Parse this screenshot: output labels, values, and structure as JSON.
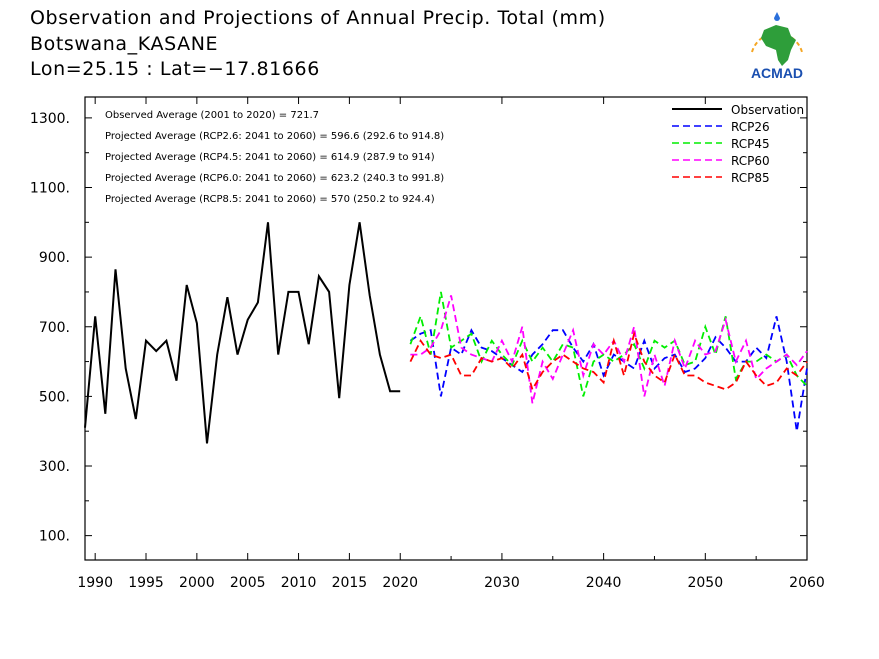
{
  "title": {
    "line1": "Observation and Projections of Annual Precip. Total (mm)",
    "line2": "Botswana_KASANE",
    "line3": "Lon=25.15 : Lat=−17.81666"
  },
  "logo": {
    "text": "ACMAD",
    "icon": "africa-map-logo"
  },
  "colors": {
    "observation": "#000000",
    "rcp26": "#0000ff",
    "rcp45": "#00ee00",
    "rcp60": "#ff00ff",
    "rcp85": "#ff0000"
  },
  "chart_data": {
    "type": "line",
    "xlim": [
      1989,
      2060
    ],
    "ylim": [
      30,
      1360
    ],
    "yticks": [
      100,
      300,
      500,
      700,
      900,
      1100,
      1300
    ],
    "ytick_labels": [
      "100.",
      "300.",
      "500.",
      "700.",
      "900.",
      "1100.",
      "1300."
    ],
    "xtick_labels": [
      {
        "x": 1990,
        "label": "1990"
      },
      {
        "x": 1995,
        "label": "1995"
      },
      {
        "x": 2000,
        "label": "2000"
      },
      {
        "x": 2005,
        "label": "2005"
      },
      {
        "x": 2010,
        "label": "2010"
      },
      {
        "x": 2015,
        "label": "2015"
      },
      {
        "x": 2020,
        "label": "2020"
      },
      {
        "x": 2030,
        "label": "2030"
      },
      {
        "x": 2040,
        "label": "2040"
      },
      {
        "x": 2050,
        "label": "2050"
      },
      {
        "x": 2060,
        "label": "2060"
      }
    ],
    "annotations": [
      "Observed Average (2001 to 2020) = 721.7",
      "Projected Average (RCP2.6: 2041 to 2060) = 596.6 (292.6 to 914.8)",
      "Projected Average (RCP4.5: 2041 to 2060) = 614.9 (287.9 to 914)",
      "Projected Average (RCP6.0: 2041 to 2060) = 623.2 (240.3 to 991.8)",
      "Projected Average (RCP8.5: 2041 to 2060) = 570 (250.2 to 924.4)"
    ],
    "series": [
      {
        "name": "Observation",
        "color": "#000000",
        "dash": false,
        "x": [
          1989,
          1990,
          1991,
          1992,
          1993,
          1994,
          1995,
          1996,
          1997,
          1998,
          1999,
          2000,
          2001,
          2002,
          2003,
          2004,
          2005,
          2006,
          2007,
          2008,
          2009,
          2010,
          2011,
          2012,
          2013,
          2014,
          2015,
          2016,
          2017,
          2018,
          2019,
          2020
        ],
        "y": [
          410,
          730,
          450,
          865,
          580,
          435,
          660,
          630,
          660,
          545,
          820,
          710,
          365,
          620,
          785,
          620,
          720,
          770,
          1000,
          620,
          800,
          800,
          650,
          845,
          800,
          495,
          820,
          1000,
          790,
          620,
          515,
          515
        ]
      },
      {
        "name": "RCP26",
        "color": "#0000ff",
        "dash": true,
        "x": [
          2021,
          2022,
          2023,
          2024,
          2025,
          2026,
          2027,
          2028,
          2029,
          2030,
          2031,
          2032,
          2033,
          2034,
          2035,
          2036,
          2037,
          2038,
          2039,
          2040,
          2041,
          2042,
          2043,
          2044,
          2045,
          2046,
          2047,
          2048,
          2049,
          2050,
          2051,
          2052,
          2053,
          2054,
          2055,
          2056,
          2057,
          2058,
          2059,
          2060
        ],
        "y": [
          660,
          680,
          690,
          500,
          640,
          620,
          690,
          640,
          630,
          610,
          590,
          570,
          620,
          650,
          690,
          690,
          640,
          600,
          650,
          560,
          620,
          600,
          580,
          660,
          580,
          610,
          620,
          570,
          580,
          610,
          670,
          640,
          600,
          600,
          640,
          610,
          730,
          600,
          400,
          580
        ]
      },
      {
        "name": "RCP45",
        "color": "#00ee00",
        "dash": true,
        "x": [
          2021,
          2022,
          2023,
          2024,
          2025,
          2026,
          2027,
          2028,
          2029,
          2030,
          2031,
          2032,
          2033,
          2034,
          2035,
          2036,
          2037,
          2038,
          2039,
          2040,
          2041,
          2042,
          2043,
          2044,
          2045,
          2046,
          2047,
          2048,
          2049,
          2050,
          2051,
          2052,
          2053,
          2054,
          2055,
          2056,
          2057,
          2058,
          2059,
          2060
        ],
        "y": [
          650,
          730,
          620,
          800,
          640,
          660,
          680,
          600,
          660,
          620,
          590,
          660,
          600,
          640,
          600,
          650,
          640,
          500,
          600,
          620,
          600,
          620,
          650,
          580,
          660,
          640,
          660,
          590,
          600,
          700,
          620,
          730,
          550,
          600,
          600,
          620,
          600,
          620,
          560,
          530
        ]
      },
      {
        "name": "RCP60",
        "color": "#ff00ff",
        "dash": true,
        "x": [
          2021,
          2022,
          2023,
          2024,
          2025,
          2026,
          2027,
          2028,
          2029,
          2030,
          2031,
          2032,
          2033,
          2034,
          2035,
          2036,
          2037,
          2038,
          2039,
          2040,
          2041,
          2042,
          2043,
          2044,
          2045,
          2046,
          2047,
          2048,
          2049,
          2050,
          2051,
          2052,
          2053,
          2054,
          2055,
          2056,
          2057,
          2058,
          2059,
          2060
        ],
        "y": [
          620,
          620,
          640,
          690,
          790,
          640,
          620,
          610,
          600,
          660,
          600,
          700,
          480,
          600,
          550,
          620,
          690,
          560,
          650,
          620,
          660,
          600,
          700,
          500,
          620,
          530,
          660,
          580,
          660,
          620,
          630,
          720,
          600,
          660,
          550,
          580,
          600,
          620,
          590,
          630
        ]
      },
      {
        "name": "RCP85",
        "color": "#ff0000",
        "dash": true,
        "x": [
          2021,
          2022,
          2023,
          2024,
          2025,
          2026,
          2027,
          2028,
          2029,
          2030,
          2031,
          2032,
          2033,
          2034,
          2035,
          2036,
          2037,
          2038,
          2039,
          2040,
          2041,
          2042,
          2043,
          2044,
          2045,
          2046,
          2047,
          2048,
          2049,
          2050,
          2051,
          2052,
          2053,
          2054,
          2055,
          2056,
          2057,
          2058,
          2059,
          2060
        ],
        "y": [
          600,
          660,
          620,
          610,
          620,
          560,
          560,
          610,
          600,
          610,
          580,
          620,
          520,
          570,
          600,
          620,
          600,
          580,
          570,
          540,
          660,
          560,
          680,
          600,
          560,
          540,
          620,
          560,
          560,
          540,
          530,
          520,
          540,
          600,
          560,
          530,
          540,
          580,
          560,
          600
        ]
      }
    ],
    "legend": {
      "position": "top-right",
      "labels": [
        "Observation",
        "RCP26",
        "RCP45",
        "RCP60",
        "RCP85"
      ]
    },
    "grid": false
  }
}
